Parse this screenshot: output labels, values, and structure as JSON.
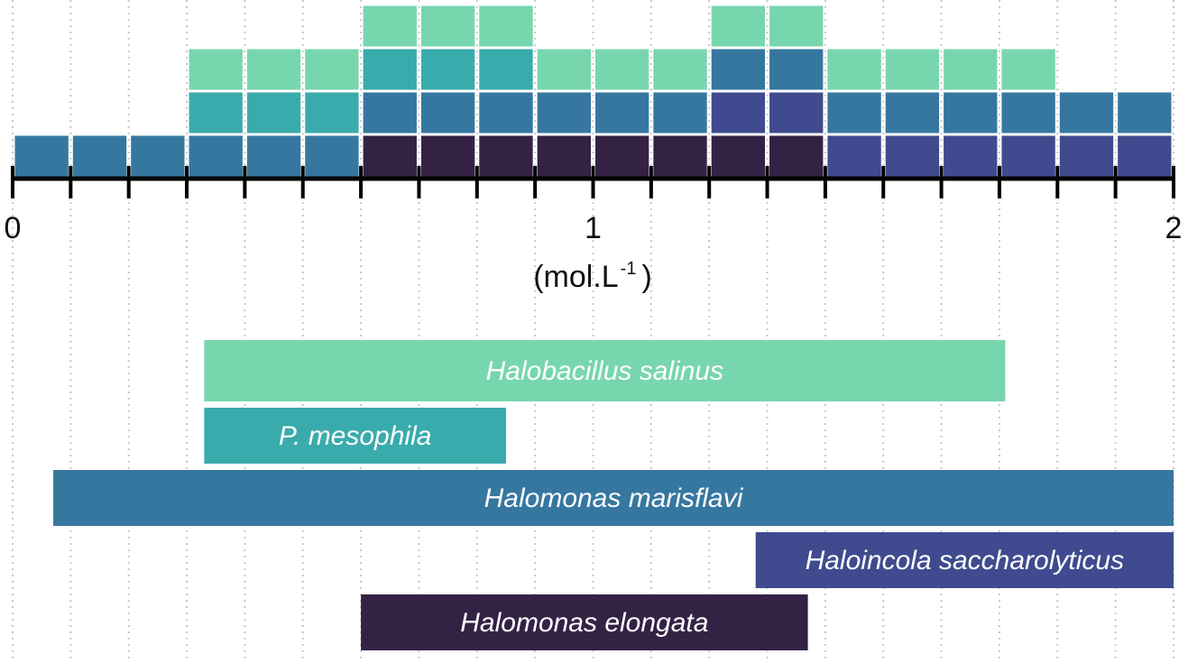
{
  "chart_data": {
    "type": "bar",
    "x_axis": {
      "min": 0,
      "max": 2,
      "step": 0.1,
      "tick_labels": [
        {
          "value": 0,
          "label": "0"
        },
        {
          "value": 1,
          "label": "1"
        },
        {
          "value": 2,
          "label": "2"
        }
      ],
      "unit": "(mol.L",
      "unit_superscript": "-1",
      "unit_close": ")"
    },
    "grid": "vertical-dotted",
    "colors": {
      "Halobacillus salinus": "#78d6ae",
      "P. mesophila": "#3aabac",
      "Halomonas marisflavi": "#3677a0",
      "Haloincola saccharolyticus": "#3f4b8e",
      "Halomonas elongata": "#342245"
    },
    "stacked_bins": [
      {
        "start": 0.0,
        "species": [
          "Halomonas marisflavi"
        ]
      },
      {
        "start": 0.1,
        "species": [
          "Halomonas marisflavi"
        ]
      },
      {
        "start": 0.2,
        "species": [
          "Halomonas marisflavi"
        ]
      },
      {
        "start": 0.3,
        "species": [
          "Halomonas marisflavi",
          "P. mesophila",
          "Halobacillus salinus"
        ]
      },
      {
        "start": 0.4,
        "species": [
          "Halomonas marisflavi",
          "P. mesophila",
          "Halobacillus salinus"
        ]
      },
      {
        "start": 0.5,
        "species": [
          "Halomonas marisflavi",
          "P. mesophila",
          "Halobacillus salinus"
        ]
      },
      {
        "start": 0.6,
        "species": [
          "Halomonas elongata",
          "Halomonas marisflavi",
          "P. mesophila",
          "Halobacillus salinus"
        ]
      },
      {
        "start": 0.7,
        "species": [
          "Halomonas elongata",
          "Halomonas marisflavi",
          "P. mesophila",
          "Halobacillus salinus"
        ]
      },
      {
        "start": 0.8,
        "species": [
          "Halomonas elongata",
          "Halomonas marisflavi",
          "P. mesophila",
          "Halobacillus salinus"
        ]
      },
      {
        "start": 0.9,
        "species": [
          "Halomonas elongata",
          "Halomonas marisflavi",
          "Halobacillus salinus"
        ]
      },
      {
        "start": 1.0,
        "species": [
          "Halomonas elongata",
          "Halomonas marisflavi",
          "Halobacillus salinus"
        ]
      },
      {
        "start": 1.1,
        "species": [
          "Halomonas elongata",
          "Halomonas marisflavi",
          "Halobacillus salinus"
        ]
      },
      {
        "start": 1.2,
        "species": [
          "Halomonas elongata",
          "Haloincola saccharolyticus",
          "Halomonas marisflavi",
          "Halobacillus salinus"
        ]
      },
      {
        "start": 1.3,
        "species": [
          "Halomonas elongata",
          "Haloincola saccharolyticus",
          "Halomonas marisflavi",
          "Halobacillus salinus"
        ]
      },
      {
        "start": 1.4,
        "species": [
          "Haloincola saccharolyticus",
          "Halomonas marisflavi",
          "Halobacillus salinus"
        ]
      },
      {
        "start": 1.5,
        "species": [
          "Haloincola saccharolyticus",
          "Halomonas marisflavi",
          "Halobacillus salinus"
        ]
      },
      {
        "start": 1.6,
        "species": [
          "Haloincola saccharolyticus",
          "Halomonas marisflavi",
          "Halobacillus salinus"
        ]
      },
      {
        "start": 1.7,
        "species": [
          "Haloincola saccharolyticus",
          "Halomonas marisflavi",
          "Halobacillus salinus"
        ]
      },
      {
        "start": 1.8,
        "species": [
          "Haloincola saccharolyticus",
          "Halomonas marisflavi"
        ]
      },
      {
        "start": 1.9,
        "species": [
          "Haloincola saccharolyticus",
          "Halomonas marisflavi"
        ]
      }
    ],
    "ranges": [
      {
        "name": "Halobacillus salinus",
        "start": 0.33,
        "end": 1.71
      },
      {
        "name": "P. mesophila",
        "start": 0.33,
        "end": 0.85
      },
      {
        "name": "Halomonas marisflavi",
        "start": 0.07,
        "end": 2.0
      },
      {
        "name": "Haloincola saccharolyticus",
        "start": 1.28,
        "end": 2.0
      },
      {
        "name": "Halomonas elongata",
        "start": 0.6,
        "end": 1.37
      }
    ]
  }
}
